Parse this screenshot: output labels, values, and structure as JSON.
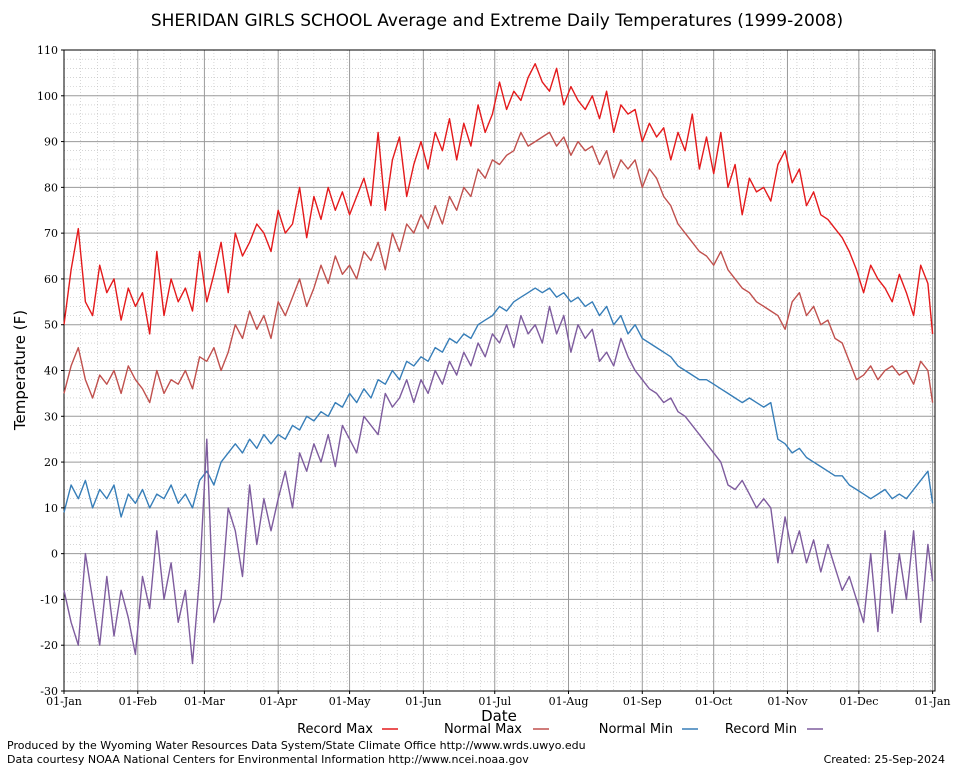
{
  "chart_data": {
    "type": "line",
    "title": "SHERIDAN GIRLS SCHOOL Average and Extreme Daily Temperatures (1999-2008)",
    "xlabel": "Date",
    "ylabel": "Temperature (F)",
    "ylim": [
      -30,
      110
    ],
    "yticks": [
      -30,
      -20,
      -10,
      0,
      10,
      20,
      30,
      40,
      50,
      60,
      70,
      80,
      90,
      100,
      110
    ],
    "xlim": [
      0,
      366
    ],
    "xticks": [
      {
        "day": 0,
        "label": "01-Jan"
      },
      {
        "day": 31,
        "label": "01-Feb"
      },
      {
        "day": 59,
        "label": "01-Mar"
      },
      {
        "day": 90,
        "label": "01-Apr"
      },
      {
        "day": 120,
        "label": "01-May"
      },
      {
        "day": 151,
        "label": "01-Jun"
      },
      {
        "day": 181,
        "label": "01-Jul"
      },
      {
        "day": 212,
        "label": "01-Aug"
      },
      {
        "day": 243,
        "label": "01-Sep"
      },
      {
        "day": 273,
        "label": "01-Oct"
      },
      {
        "day": 304,
        "label": "01-Nov"
      },
      {
        "day": 334,
        "label": "01-Dec"
      },
      {
        "day": 365,
        "label": "01-Jan"
      }
    ],
    "grid": true,
    "legend_position": "bottom",
    "series": [
      {
        "name": "Record Max",
        "color": "#e41a1c",
        "x": [
          0,
          3,
          6,
          9,
          12,
          15,
          18,
          21,
          24,
          27,
          30,
          33,
          36,
          39,
          42,
          45,
          48,
          51,
          54,
          57,
          60,
          63,
          66,
          69,
          72,
          75,
          78,
          81,
          84,
          87,
          90,
          93,
          96,
          99,
          102,
          105,
          108,
          111,
          114,
          117,
          120,
          123,
          126,
          129,
          132,
          135,
          138,
          141,
          144,
          147,
          150,
          153,
          156,
          159,
          162,
          165,
          168,
          171,
          174,
          177,
          180,
          183,
          186,
          189,
          192,
          195,
          198,
          201,
          204,
          207,
          210,
          213,
          216,
          219,
          222,
          225,
          228,
          231,
          234,
          237,
          240,
          243,
          246,
          249,
          252,
          255,
          258,
          261,
          264,
          267,
          270,
          273,
          276,
          279,
          282,
          285,
          288,
          291,
          294,
          297,
          300,
          303,
          306,
          309,
          312,
          315,
          318,
          321,
          324,
          327,
          330,
          333,
          336,
          339,
          342,
          345,
          348,
          351,
          354,
          357,
          360,
          363,
          365
        ],
        "y": [
          50,
          62,
          71,
          55,
          52,
          63,
          57,
          60,
          51,
          58,
          54,
          57,
          48,
          66,
          52,
          60,
          55,
          58,
          53,
          66,
          55,
          61,
          68,
          57,
          70,
          65,
          68,
          72,
          70,
          66,
          75,
          70,
          72,
          80,
          69,
          78,
          73,
          80,
          75,
          79,
          74,
          78,
          82,
          76,
          92,
          75,
          86,
          91,
          78,
          85,
          90,
          84,
          92,
          88,
          95,
          86,
          94,
          89,
          98,
          92,
          96,
          103,
          97,
          101,
          99,
          104,
          107,
          103,
          101,
          106,
          98,
          102,
          99,
          97,
          100,
          95,
          101,
          92,
          98,
          96,
          97,
          90,
          94,
          91,
          93,
          86,
          92,
          88,
          96,
          84,
          91,
          83,
          92,
          80,
          85,
          74,
          82,
          79,
          80,
          77,
          85,
          88,
          81,
          84,
          76,
          79,
          74,
          73,
          71,
          69,
          66,
          62,
          57,
          63,
          60,
          58,
          55,
          61,
          57,
          52,
          63,
          59,
          48
        ]
      },
      {
        "name": "Normal Max",
        "color": "#c0504d",
        "x": [
          0,
          3,
          6,
          9,
          12,
          15,
          18,
          21,
          24,
          27,
          30,
          33,
          36,
          39,
          42,
          45,
          48,
          51,
          54,
          57,
          60,
          63,
          66,
          69,
          72,
          75,
          78,
          81,
          84,
          87,
          90,
          93,
          96,
          99,
          102,
          105,
          108,
          111,
          114,
          117,
          120,
          123,
          126,
          129,
          132,
          135,
          138,
          141,
          144,
          147,
          150,
          153,
          156,
          159,
          162,
          165,
          168,
          171,
          174,
          177,
          180,
          183,
          186,
          189,
          192,
          195,
          198,
          201,
          204,
          207,
          210,
          213,
          216,
          219,
          222,
          225,
          228,
          231,
          234,
          237,
          240,
          243,
          246,
          249,
          252,
          255,
          258,
          261,
          264,
          267,
          270,
          273,
          276,
          279,
          282,
          285,
          288,
          291,
          294,
          297,
          300,
          303,
          306,
          309,
          312,
          315,
          318,
          321,
          324,
          327,
          330,
          333,
          336,
          339,
          342,
          345,
          348,
          351,
          354,
          357,
          360,
          363,
          365
        ],
        "y": [
          35,
          41,
          45,
          38,
          34,
          39,
          37,
          40,
          35,
          41,
          38,
          36,
          33,
          40,
          35,
          38,
          37,
          40,
          36,
          43,
          42,
          45,
          40,
          44,
          50,
          47,
          53,
          49,
          52,
          47,
          55,
          52,
          56,
          60,
          54,
          58,
          63,
          59,
          65,
          61,
          63,
          60,
          66,
          64,
          68,
          62,
          70,
          66,
          72,
          70,
          74,
          71,
          76,
          72,
          78,
          75,
          80,
          78,
          84,
          82,
          86,
          85,
          87,
          88,
          92,
          89,
          90,
          91,
          92,
          89,
          91,
          87,
          90,
          88,
          89,
          85,
          88,
          82,
          86,
          84,
          86,
          80,
          84,
          82,
          78,
          76,
          72,
          70,
          68,
          66,
          65,
          63,
          66,
          62,
          60,
          58,
          57,
          55,
          54,
          53,
          52,
          49,
          55,
          57,
          52,
          54,
          50,
          51,
          47,
          46,
          42,
          38,
          39,
          41,
          38,
          40,
          41,
          39,
          40,
          37,
          42,
          40,
          33
        ]
      },
      {
        "name": "Normal Min",
        "color": "#377eb8",
        "x": [
          0,
          3,
          6,
          9,
          12,
          15,
          18,
          21,
          24,
          27,
          30,
          33,
          36,
          39,
          42,
          45,
          48,
          51,
          54,
          57,
          60,
          63,
          66,
          69,
          72,
          75,
          78,
          81,
          84,
          87,
          90,
          93,
          96,
          99,
          102,
          105,
          108,
          111,
          114,
          117,
          120,
          123,
          126,
          129,
          132,
          135,
          138,
          141,
          144,
          147,
          150,
          153,
          156,
          159,
          162,
          165,
          168,
          171,
          174,
          177,
          180,
          183,
          186,
          189,
          192,
          195,
          198,
          201,
          204,
          207,
          210,
          213,
          216,
          219,
          222,
          225,
          228,
          231,
          234,
          237,
          240,
          243,
          246,
          249,
          252,
          255,
          258,
          261,
          264,
          267,
          270,
          273,
          276,
          279,
          282,
          285,
          288,
          291,
          294,
          297,
          300,
          303,
          306,
          309,
          312,
          315,
          318,
          321,
          324,
          327,
          330,
          333,
          336,
          339,
          342,
          345,
          348,
          351,
          354,
          357,
          360,
          363,
          365
        ],
        "y": [
          9,
          15,
          12,
          16,
          10,
          14,
          12,
          15,
          8,
          13,
          11,
          14,
          10,
          13,
          12,
          15,
          11,
          13,
          10,
          16,
          18,
          15,
          20,
          22,
          24,
          22,
          25,
          23,
          26,
          24,
          26,
          25,
          28,
          27,
          30,
          29,
          31,
          30,
          33,
          32,
          35,
          33,
          36,
          34,
          38,
          37,
          40,
          38,
          42,
          41,
          43,
          42,
          45,
          44,
          47,
          46,
          48,
          47,
          50,
          51,
          52,
          54,
          53,
          55,
          56,
          57,
          58,
          57,
          58,
          56,
          57,
          55,
          56,
          54,
          55,
          52,
          54,
          50,
          52,
          48,
          50,
          47,
          46,
          45,
          44,
          43,
          41,
          40,
          39,
          38,
          38,
          37,
          36,
          35,
          34,
          33,
          34,
          33,
          32,
          33,
          25,
          24,
          22,
          23,
          21,
          20,
          19,
          18,
          17,
          17,
          15,
          14,
          13,
          12,
          13,
          14,
          12,
          13,
          12,
          14,
          16,
          18,
          11
        ]
      },
      {
        "name": "Record Min",
        "color": "#7e5c9e",
        "x": [
          0,
          3,
          6,
          9,
          12,
          15,
          18,
          21,
          24,
          27,
          30,
          33,
          36,
          39,
          42,
          45,
          48,
          51,
          54,
          57,
          60,
          63,
          66,
          69,
          72,
          75,
          78,
          81,
          84,
          87,
          90,
          93,
          96,
          99,
          102,
          105,
          108,
          111,
          114,
          117,
          120,
          123,
          126,
          129,
          132,
          135,
          138,
          141,
          144,
          147,
          150,
          153,
          156,
          159,
          162,
          165,
          168,
          171,
          174,
          177,
          180,
          183,
          186,
          189,
          192,
          195,
          198,
          201,
          204,
          207,
          210,
          213,
          216,
          219,
          222,
          225,
          228,
          231,
          234,
          237,
          240,
          243,
          246,
          249,
          252,
          255,
          258,
          261,
          264,
          267,
          270,
          273,
          276,
          279,
          282,
          285,
          288,
          291,
          294,
          297,
          300,
          303,
          306,
          309,
          312,
          315,
          318,
          321,
          324,
          327,
          330,
          333,
          336,
          339,
          342,
          345,
          348,
          351,
          354,
          357,
          360,
          363,
          365
        ],
        "y": [
          -8,
          -15,
          -20,
          0,
          -10,
          -20,
          -5,
          -18,
          -8,
          -14,
          -22,
          -5,
          -12,
          5,
          -10,
          -2,
          -15,
          -8,
          -24,
          -5,
          25,
          -15,
          -10,
          10,
          5,
          -5,
          15,
          2,
          12,
          5,
          12,
          18,
          10,
          22,
          18,
          24,
          20,
          26,
          19,
          28,
          25,
          22,
          30,
          28,
          26,
          35,
          32,
          34,
          38,
          33,
          38,
          35,
          40,
          37,
          42,
          39,
          44,
          41,
          46,
          43,
          48,
          46,
          50,
          45,
          52,
          48,
          50,
          46,
          54,
          48,
          52,
          44,
          50,
          47,
          49,
          42,
          44,
          41,
          47,
          43,
          40,
          38,
          36,
          35,
          33,
          34,
          31,
          30,
          28,
          26,
          24,
          22,
          20,
          15,
          14,
          16,
          13,
          10,
          12,
          10,
          -2,
          8,
          0,
          5,
          -2,
          3,
          -4,
          2,
          -3,
          -8,
          -5,
          -10,
          -15,
          0,
          -17,
          5,
          -13,
          0,
          -10,
          5,
          -15,
          2,
          -6
        ]
      }
    ]
  },
  "footer": {
    "produced_by": "Produced by the Wyoming Water Resources Data System/State Climate Office http://www.wrds.uwyo.edu",
    "courtesy": "Data courtesy NOAA National Centers for Environmental Information http://www.ncei.noaa.gov",
    "created": "Created: 25-Sep-2024"
  }
}
